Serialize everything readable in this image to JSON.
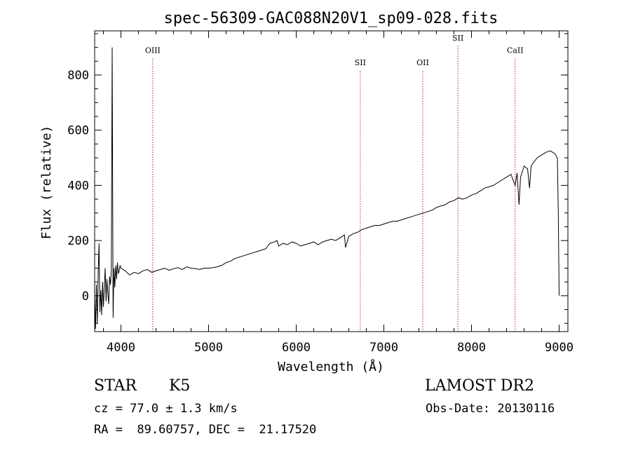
{
  "chart_data": {
    "type": "line",
    "title": "spec-56309-GAC088N20V1_sp09-028.fits",
    "xlabel": "Wavelength (Å)",
    "ylabel": "Flux (relative)",
    "xlim": [
      3700,
      9100
    ],
    "ylim": [
      -130,
      960
    ],
    "x_ticks": [
      4000,
      5000,
      6000,
      7000,
      8000,
      9000
    ],
    "x_tick_labels": [
      "4000",
      "5000",
      "6000",
      "7000",
      "8000",
      "9000"
    ],
    "y_ticks": [
      0,
      200,
      400,
      600,
      800
    ],
    "y_tick_labels": [
      "0",
      "200",
      "400",
      "600",
      "800"
    ],
    "grid": false,
    "line_color": "#000000",
    "marker_color": "#b22222",
    "series": [
      {
        "x": [
          3700,
          3710,
          3720,
          3730,
          3740,
          3750,
          3760,
          3770,
          3780,
          3790,
          3800,
          3810,
          3820,
          3830,
          3840,
          3850,
          3860,
          3870,
          3880,
          3890,
          3900,
          3910,
          3920,
          3930,
          3940,
          3950,
          3960,
          3970,
          3980,
          3990,
          4000,
          4050,
          4100,
          4150,
          4200,
          4250,
          4300,
          4350,
          4400,
          4450,
          4500,
          4550,
          4600,
          4650,
          4700,
          4750,
          4800,
          4850,
          4900,
          4950,
          5000,
          5050,
          5100,
          5150,
          5200,
          5250,
          5300,
          5350,
          5400,
          5450,
          5500,
          5550,
          5600,
          5650,
          5700,
          5750,
          5780,
          5800,
          5850,
          5900,
          5950,
          6000,
          6050,
          6100,
          6150,
          6200,
          6250,
          6300,
          6350,
          6400,
          6450,
          6500,
          6550,
          6562,
          6600,
          6650,
          6700,
          6750,
          6800,
          6850,
          6900,
          6950,
          7000,
          7050,
          7100,
          7150,
          7200,
          7250,
          7300,
          7350,
          7400,
          7450,
          7500,
          7550,
          7600,
          7650,
          7700,
          7750,
          7800,
          7850,
          7900,
          7950,
          8000,
          8050,
          8100,
          8150,
          8200,
          8250,
          8300,
          8350,
          8400,
          8450,
          8498,
          8520,
          8542,
          8560,
          8600,
          8640,
          8662,
          8680,
          8700,
          8750,
          8800,
          8850,
          8900,
          8950,
          8980,
          8990,
          8995,
          9000
        ],
        "y": [
          0,
          -120,
          40,
          -100,
          80,
          190,
          -60,
          20,
          -70,
          50,
          -40,
          30,
          100,
          -20,
          60,
          10,
          -30,
          70,
          40,
          90,
          900,
          -80,
          100,
          30,
          110,
          60,
          120,
          80,
          90,
          110,
          100,
          90,
          75,
          85,
          80,
          90,
          95,
          85,
          90,
          95,
          100,
          92,
          98,
          102,
          95,
          105,
          100,
          98,
          95,
          100,
          100,
          102,
          105,
          110,
          120,
          125,
          135,
          140,
          145,
          150,
          155,
          160,
          165,
          170,
          190,
          195,
          200,
          180,
          190,
          185,
          195,
          190,
          180,
          185,
          190,
          195,
          185,
          195,
          200,
          205,
          200,
          210,
          220,
          175,
          215,
          225,
          230,
          240,
          245,
          250,
          255,
          255,
          260,
          265,
          270,
          270,
          275,
          280,
          285,
          290,
          295,
          300,
          305,
          310,
          320,
          325,
          330,
          340,
          345,
          355,
          350,
          355,
          365,
          370,
          380,
          390,
          395,
          400,
          410,
          420,
          430,
          440,
          400,
          445,
          330,
          430,
          470,
          460,
          390,
          470,
          480,
          500,
          510,
          520,
          525,
          515,
          500,
          300,
          150,
          0
        ]
      }
    ],
    "line_markers": [
      {
        "label": "OIII",
        "x": 4363,
        "label_y": 880
      },
      {
        "label": "SII",
        "x": 6731,
        "label_y": 835
      },
      {
        "label": "OII",
        "x": 7444,
        "label_y": 835
      },
      {
        "label": "SII",
        "x": 7845,
        "label_y": 925
      },
      {
        "label": "CaII",
        "x": 8498,
        "label_y": 880
      }
    ]
  },
  "info": {
    "object_class": "STAR",
    "subclass": "K5",
    "survey": "LAMOST DR2",
    "cz": "cz = 77.0 ± 1.3 km/s",
    "obs_date": "Obs-Date: 20130116",
    "coords": "RA =  89.60757, DEC =  21.17520"
  }
}
